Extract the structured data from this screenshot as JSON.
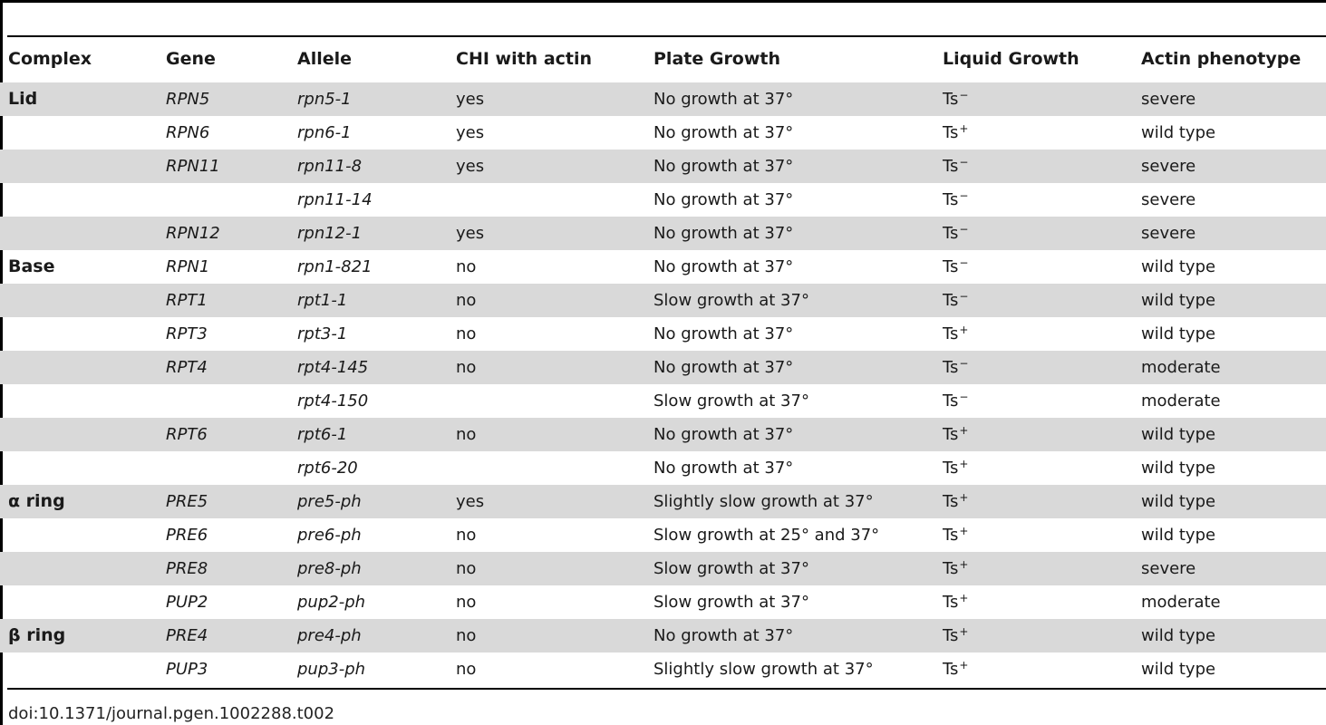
{
  "table": {
    "headers": [
      "Complex",
      "Gene",
      "Allele",
      "CHI with actin",
      "Plate Growth",
      "Liquid Growth",
      "Actin phenotype"
    ],
    "rows": [
      {
        "complex": "Lid",
        "gene": "RPN5",
        "allele": "rpn5-1",
        "chi": "yes",
        "plate": "No growth at 37°",
        "liquid": "Ts",
        "liquid_sup": "−",
        "actin": "severe"
      },
      {
        "complex": "",
        "gene": "RPN6",
        "allele": "rpn6-1",
        "chi": "yes",
        "plate": "No growth at 37°",
        "liquid": "Ts",
        "liquid_sup": "+",
        "actin": "wild type"
      },
      {
        "complex": "",
        "gene": "RPN11",
        "allele": "rpn11-8",
        "chi": "yes",
        "plate": "No growth at 37°",
        "liquid": "Ts",
        "liquid_sup": "−",
        "actin": "severe"
      },
      {
        "complex": "",
        "gene": "",
        "allele": "rpn11-14",
        "chi": "",
        "plate": "No growth at 37°",
        "liquid": "Ts",
        "liquid_sup": "−",
        "actin": "severe"
      },
      {
        "complex": "",
        "gene": "RPN12",
        "allele": "rpn12-1",
        "chi": "yes",
        "plate": "No growth at 37°",
        "liquid": "Ts",
        "liquid_sup": "−",
        "actin": "severe"
      },
      {
        "complex": "Base",
        "gene": "RPN1",
        "allele": "rpn1-821",
        "chi": "no",
        "plate": "No growth at 37°",
        "liquid": "Ts",
        "liquid_sup": "−",
        "actin": "wild type"
      },
      {
        "complex": "",
        "gene": "RPT1",
        "allele": "rpt1-1",
        "chi": "no",
        "plate": "Slow growth at 37°",
        "liquid": "Ts",
        "liquid_sup": "−",
        "actin": "wild type"
      },
      {
        "complex": "",
        "gene": "RPT3",
        "allele": "rpt3-1",
        "chi": "no",
        "plate": "No growth at 37°",
        "liquid": "Ts",
        "liquid_sup": "+",
        "actin": "wild type"
      },
      {
        "complex": "",
        "gene": "RPT4",
        "allele": "rpt4-145",
        "chi": "no",
        "plate": "No growth at 37°",
        "liquid": "Ts",
        "liquid_sup": "−",
        "actin": "moderate"
      },
      {
        "complex": "",
        "gene": "",
        "allele": "rpt4-150",
        "chi": "",
        "plate": "Slow growth at 37°",
        "liquid": "Ts",
        "liquid_sup": "−",
        "actin": "moderate"
      },
      {
        "complex": "",
        "gene": "RPT6",
        "allele": "rpt6-1",
        "chi": "no",
        "plate": "No growth at 37°",
        "liquid": "Ts",
        "liquid_sup": "+",
        "actin": "wild type"
      },
      {
        "complex": "",
        "gene": "",
        "allele": "rpt6-20",
        "chi": "",
        "plate": "No growth at 37°",
        "liquid": "Ts",
        "liquid_sup": "+",
        "actin": "wild type"
      },
      {
        "complex": "α ring",
        "gene": "PRE5",
        "allele": "pre5-ph",
        "chi": "yes",
        "plate": "Slightly slow growth at 37°",
        "liquid": "Ts",
        "liquid_sup": "+",
        "actin": "wild type"
      },
      {
        "complex": "",
        "gene": "PRE6",
        "allele": "pre6-ph",
        "chi": "no",
        "plate": "Slow growth at 25° and 37°",
        "liquid": "Ts",
        "liquid_sup": "+",
        "actin": "wild type"
      },
      {
        "complex": "",
        "gene": "PRE8",
        "allele": "pre8-ph",
        "chi": "no",
        "plate": "Slow growth at 37°",
        "liquid": "Ts",
        "liquid_sup": "+",
        "actin": "severe"
      },
      {
        "complex": "",
        "gene": "PUP2",
        "allele": "pup2-ph",
        "chi": "no",
        "plate": "Slow growth at 37°",
        "liquid": "Ts",
        "liquid_sup": "+",
        "actin": "moderate"
      },
      {
        "complex": "β ring",
        "gene": "PRE4",
        "allele": "pre4-ph",
        "chi": "no",
        "plate": "No growth at 37°",
        "liquid": "Ts",
        "liquid_sup": "+",
        "actin": "wild type"
      },
      {
        "complex": "",
        "gene": "PUP3",
        "allele": "pup3-ph",
        "chi": "no",
        "plate": "Slightly slow growth at 37°",
        "liquid": "Ts",
        "liquid_sup": "+",
        "actin": "wild type"
      }
    ]
  },
  "footer": {
    "doi": "doi:10.1371/journal.pgen.1002288.t002"
  }
}
